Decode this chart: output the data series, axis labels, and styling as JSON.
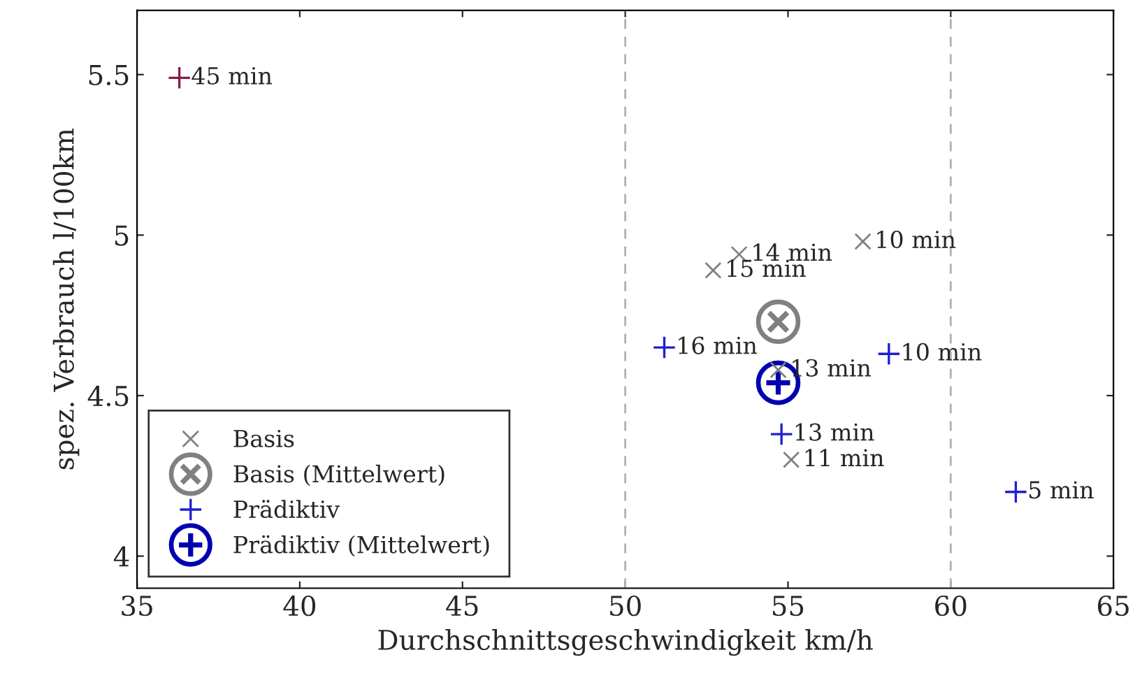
{
  "chart_data": {
    "type": "scatter",
    "xlabel": "Durchschnittsgeschwindigkeit km/h",
    "ylabel": "spez. Verbrauch l/100km",
    "xlim": [
      35,
      65
    ],
    "xticks": [
      35,
      40,
      45,
      50,
      55,
      60,
      65
    ],
    "ylim": [
      3.9,
      5.7
    ],
    "yticks": [
      4,
      4.5,
      5,
      5.5
    ],
    "grid": false,
    "legend": "bottom left",
    "ref_lines": [
      {
        "axis": "x",
        "value": 50,
        "color": "#b0b0b0",
        "line_style": "dashed"
      },
      {
        "axis": "x",
        "value": 60,
        "color": "#b0b0b0",
        "line_style": "dashed"
      }
    ],
    "series": [
      {
        "name": "Basis",
        "color": "#808080",
        "marker": "x",
        "x": [
          53.5,
          57.3,
          52.7,
          54.7,
          55.1
        ],
        "values": [
          4.94,
          4.98,
          4.89,
          4.58,
          4.3
        ]
      },
      {
        "name": "Basis (Mittelwert)",
        "color": "#808080",
        "marker": "circle-x",
        "x": [
          54.7
        ],
        "values": [
          4.73
        ]
      },
      {
        "name": "Prädiktiv",
        "color": "#1f1fd0",
        "marker": "plus",
        "x": [
          51.2,
          58.1,
          54.8,
          62.0
        ],
        "values": [
          4.65,
          4.63,
          4.38,
          4.2
        ]
      },
      {
        "name": "Prädiktiv (Mittelwert)",
        "color": "#0000b0",
        "marker": "cross",
        "x": [
          54.7
        ],
        "values": [
          4.54
        ]
      },
      {
        "color": "#8b1a4a",
        "marker": "plus",
        "x": [
          36.3
        ],
        "values": [
          5.49
        ]
      }
    ],
    "annotations": [
      {
        "text": "45 min",
        "x": 36.3,
        "y": 5.49
      },
      {
        "text": "14 min",
        "x": 53.5,
        "y": 4.94
      },
      {
        "text": "10 min",
        "x": 57.3,
        "y": 4.98
      },
      {
        "text": "15 min",
        "x": 52.7,
        "y": 4.89
      },
      {
        "text": "13 min",
        "x": 54.7,
        "y": 4.58
      },
      {
        "text": "11 min",
        "x": 55.1,
        "y": 4.3
      },
      {
        "text": "16 min",
        "x": 51.2,
        "y": 4.65
      },
      {
        "text": "10 min",
        "x": 58.1,
        "y": 4.63
      },
      {
        "text": "13 min",
        "x": 54.8,
        "y": 4.38
      },
      {
        "text": "5 min",
        "x": 62.0,
        "y": 4.2
      }
    ]
  }
}
